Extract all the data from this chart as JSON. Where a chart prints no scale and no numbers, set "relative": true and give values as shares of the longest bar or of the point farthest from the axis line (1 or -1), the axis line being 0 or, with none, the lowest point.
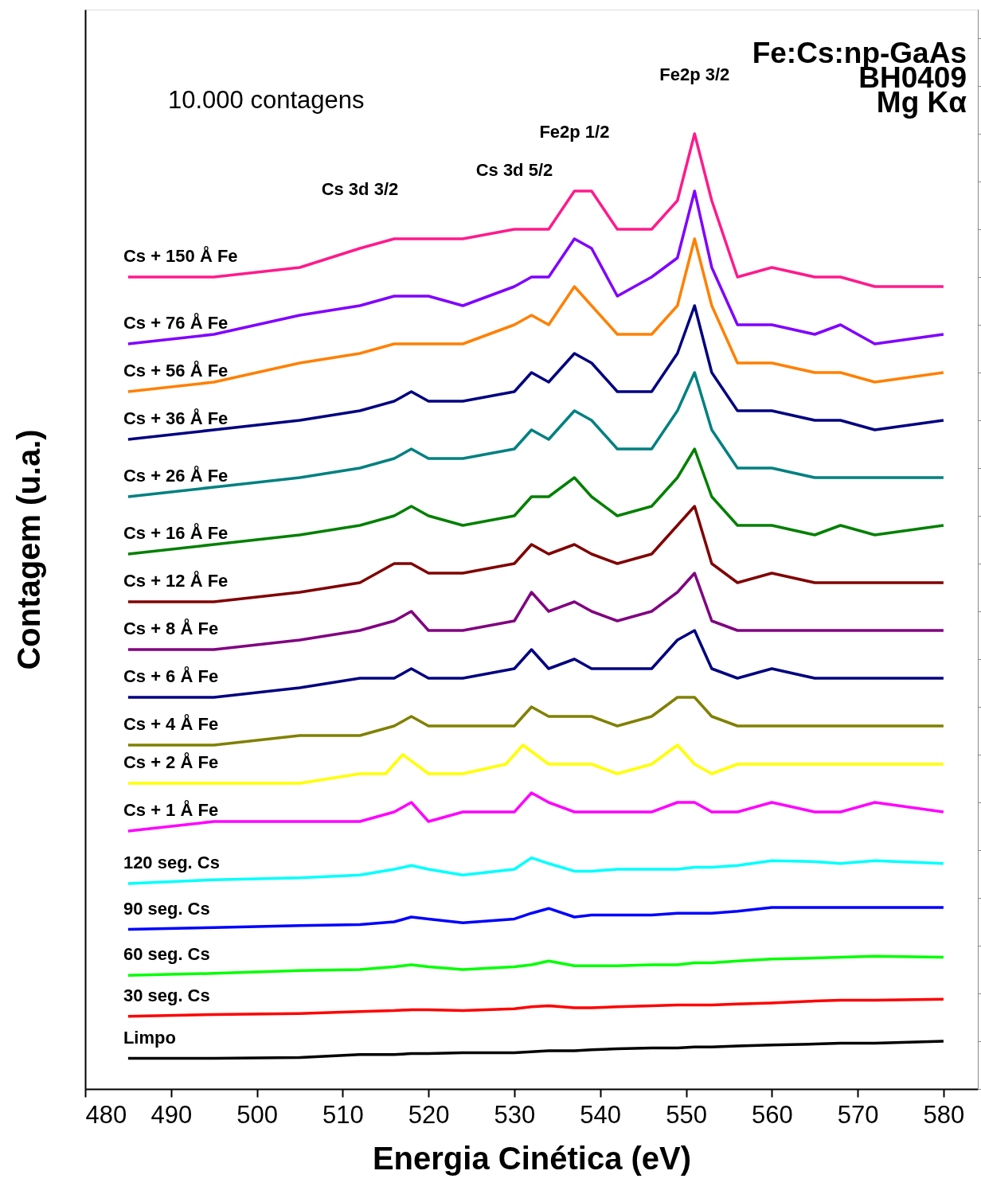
{
  "chart_data": {
    "type": "line",
    "relative": true,
    "xlabel": "Energia Cinética (eV)",
    "ylabel": "Contagem (u.a.)",
    "xlim": [
      480,
      584
    ],
    "xticks": [
      480,
      490,
      500,
      510,
      520,
      530,
      540,
      550,
      560,
      570,
      580
    ],
    "line_style": "solid",
    "marker": "none",
    "x": [
      485,
      495,
      505,
      512,
      516,
      518,
      520,
      524,
      530,
      532,
      534,
      537,
      539,
      542,
      546,
      549,
      551,
      553,
      556,
      560,
      565,
      568,
      572,
      580
    ],
    "series": [
      {
        "name": "Cs + 150 Å Fe",
        "color": "#ff1a8c",
        "values": [
          0.85,
          0.85,
          0.86,
          0.88,
          0.89,
          0.89,
          0.89,
          0.89,
          0.9,
          0.9,
          0.9,
          0.94,
          0.94,
          0.9,
          0.9,
          0.93,
          1.0,
          0.93,
          0.85,
          0.86,
          0.85,
          0.85,
          0.84,
          0.84
        ]
      },
      {
        "name": "Cs + 76 Å Fe",
        "color": "#8000ff",
        "values": [
          0.78,
          0.79,
          0.81,
          0.82,
          0.83,
          0.83,
          0.83,
          0.82,
          0.84,
          0.85,
          0.85,
          0.89,
          0.88,
          0.83,
          0.85,
          0.87,
          0.94,
          0.86,
          0.8,
          0.8,
          0.79,
          0.8,
          0.78,
          0.79
        ]
      },
      {
        "name": "Cs + 56 Å Fe",
        "color": "#ff8000",
        "values": [
          0.73,
          0.74,
          0.76,
          0.77,
          0.78,
          0.78,
          0.78,
          0.78,
          0.8,
          0.81,
          0.8,
          0.84,
          0.82,
          0.79,
          0.79,
          0.82,
          0.89,
          0.82,
          0.76,
          0.76,
          0.75,
          0.75,
          0.74,
          0.75
        ]
      },
      {
        "name": "Cs + 36 Å Fe",
        "color": "#000080",
        "values": [
          0.68,
          0.69,
          0.7,
          0.71,
          0.72,
          0.73,
          0.72,
          0.72,
          0.73,
          0.75,
          0.74,
          0.77,
          0.76,
          0.73,
          0.73,
          0.77,
          0.82,
          0.75,
          0.71,
          0.71,
          0.7,
          0.7,
          0.69,
          0.7
        ]
      },
      {
        "name": "Cs + 26 Å Fe",
        "color": "#008080",
        "values": [
          0.62,
          0.63,
          0.64,
          0.65,
          0.66,
          0.67,
          0.66,
          0.66,
          0.67,
          0.69,
          0.68,
          0.71,
          0.7,
          0.67,
          0.67,
          0.71,
          0.75,
          0.69,
          0.65,
          0.65,
          0.64,
          0.64,
          0.64,
          0.64
        ]
      },
      {
        "name": "Cs + 16 Å Fe",
        "color": "#008000",
        "values": [
          0.56,
          0.57,
          0.58,
          0.59,
          0.6,
          0.61,
          0.6,
          0.59,
          0.6,
          0.62,
          0.62,
          0.64,
          0.62,
          0.6,
          0.61,
          0.64,
          0.67,
          0.62,
          0.59,
          0.59,
          0.58,
          0.59,
          0.58,
          0.59
        ]
      },
      {
        "name": "Cs + 12 Å Fe",
        "color": "#800000",
        "values": [
          0.51,
          0.51,
          0.52,
          0.53,
          0.55,
          0.55,
          0.54,
          0.54,
          0.55,
          0.57,
          0.56,
          0.57,
          0.56,
          0.55,
          0.56,
          0.59,
          0.61,
          0.55,
          0.53,
          0.54,
          0.53,
          0.53,
          0.53,
          0.53
        ]
      },
      {
        "name": "Cs + 8 Å Fe",
        "color": "#800080",
        "values": [
          0.46,
          0.46,
          0.47,
          0.48,
          0.49,
          0.5,
          0.48,
          0.48,
          0.49,
          0.52,
          0.5,
          0.51,
          0.5,
          0.49,
          0.5,
          0.52,
          0.54,
          0.49,
          0.48,
          0.48,
          0.48,
          0.48,
          0.48,
          0.48
        ]
      },
      {
        "name": "Cs + 6 Å Fe",
        "color": "#000080",
        "values": [
          0.41,
          0.41,
          0.42,
          0.43,
          0.43,
          0.44,
          0.43,
          0.43,
          0.44,
          0.46,
          0.44,
          0.45,
          0.44,
          0.44,
          0.44,
          0.47,
          0.48,
          0.44,
          0.43,
          0.44,
          0.43,
          0.43,
          0.43,
          0.43
        ]
      },
      {
        "name": "Cs + 4 Å Fe",
        "color": "#808000",
        "values": [
          0.36,
          0.36,
          0.37,
          0.37,
          0.38,
          0.39,
          0.38,
          0.38,
          0.38,
          0.4,
          0.39,
          0.39,
          0.39,
          0.38,
          0.39,
          0.41,
          0.41,
          0.39,
          0.38,
          0.38,
          0.38,
          0.38,
          0.38,
          0.38
        ]
      },
      {
        "name": "Cs + 2 Å Fe",
        "color": "#ffff00",
        "x": [
          485,
          495,
          505,
          512,
          515,
          517,
          520,
          524,
          529,
          531,
          534,
          537,
          539,
          542,
          546,
          549,
          551,
          553,
          556,
          560,
          565,
          568,
          572,
          580
        ],
        "values": [
          0.32,
          0.32,
          0.32,
          0.33,
          0.33,
          0.35,
          0.33,
          0.33,
          0.34,
          0.36,
          0.34,
          0.34,
          0.34,
          0.33,
          0.34,
          0.36,
          0.34,
          0.33,
          0.34,
          0.34,
          0.34,
          0.34,
          0.34,
          0.34
        ]
      },
      {
        "name": "Cs + 1 Å Fe",
        "color": "#ff00ff",
        "values": [
          0.27,
          0.28,
          0.28,
          0.28,
          0.29,
          0.3,
          0.28,
          0.29,
          0.29,
          0.31,
          0.3,
          0.29,
          0.29,
          0.29,
          0.29,
          0.3,
          0.3,
          0.29,
          0.29,
          0.3,
          0.29,
          0.29,
          0.3,
          0.29
        ]
      },
      {
        "name": "120 seg. Cs",
        "color": "#00ffff",
        "values": [
          0.215,
          0.219,
          0.221,
          0.224,
          0.23,
          0.234,
          0.23,
          0.224,
          0.23,
          0.242,
          0.236,
          0.228,
          0.228,
          0.23,
          0.23,
          0.23,
          0.232,
          0.232,
          0.234,
          0.239,
          0.238,
          0.236,
          0.239,
          0.236
        ]
      },
      {
        "name": "90 seg. Cs",
        "color": "#0000ff",
        "values": [
          0.167,
          0.169,
          0.171,
          0.172,
          0.175,
          0.18,
          0.178,
          0.174,
          0.178,
          0.184,
          0.189,
          0.18,
          0.182,
          0.182,
          0.182,
          0.184,
          0.184,
          0.184,
          0.186,
          0.19,
          0.19,
          0.19,
          0.19,
          0.19
        ]
      },
      {
        "name": "60 seg. Cs",
        "color": "#00ff00",
        "values": [
          0.119,
          0.121,
          0.124,
          0.125,
          0.128,
          0.13,
          0.128,
          0.125,
          0.128,
          0.13,
          0.134,
          0.129,
          0.129,
          0.129,
          0.13,
          0.13,
          0.132,
          0.132,
          0.134,
          0.136,
          0.137,
          0.138,
          0.139,
          0.138
        ]
      },
      {
        "name": "30 seg. Cs",
        "color": "#ff0000",
        "values": [
          0.076,
          0.078,
          0.079,
          0.081,
          0.082,
          0.083,
          0.083,
          0.082,
          0.084,
          0.086,
          0.087,
          0.085,
          0.085,
          0.086,
          0.087,
          0.088,
          0.088,
          0.088,
          0.089,
          0.09,
          0.092,
          0.093,
          0.093,
          0.094
        ]
      },
      {
        "name": "Limpo",
        "color": "#000000",
        "values": [
          0.032,
          0.032,
          0.033,
          0.036,
          0.036,
          0.037,
          0.037,
          0.038,
          0.038,
          0.039,
          0.04,
          0.04,
          0.041,
          0.042,
          0.043,
          0.043,
          0.044,
          0.044,
          0.045,
          0.046,
          0.047,
          0.048,
          0.048,
          0.05
        ]
      }
    ],
    "annotations": [
      "10.000 contagens",
      "Fe:Cs:np-GaAs",
      "BH0409",
      "Mg Kα",
      {
        "text": "Cs 3d 3/2",
        "x": 512,
        "y": 0.88
      },
      {
        "text": "Cs 3d 5/2",
        "x": 530,
        "y": 0.9
      },
      {
        "text": "Fe2p 1/2",
        "x": 537,
        "y": 0.94
      },
      {
        "text": "Fe2p 3/2",
        "x": 551,
        "y": 1.0
      }
    ]
  }
}
